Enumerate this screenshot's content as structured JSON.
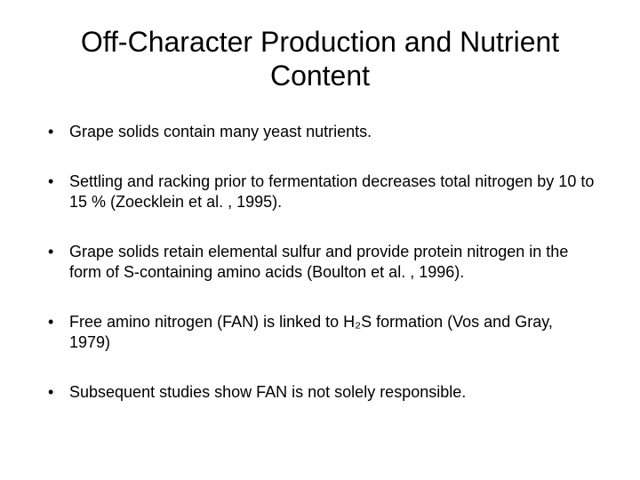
{
  "title": "Off-Character Production and Nutrient Content",
  "bullets": [
    "Grape solids contain many yeast nutrients.",
    "Settling and racking prior to fermentation decreases total nitrogen by 10 to 15 % (Zoecklein et al. , 1995).",
    "Grape solids retain elemental sulfur and provide protein nitrogen in the form of S-containing amino acids (Boulton et al. , 1996).",
    "Free amino nitrogen (FAN) is linked to H₂S formation (Vos and Gray, 1979)",
    "Subsequent studies show FAN is not solely responsible."
  ],
  "title_fontsize": 32,
  "body_fontsize": 18,
  "text_color": "#000000",
  "background_color": "#ffffff"
}
